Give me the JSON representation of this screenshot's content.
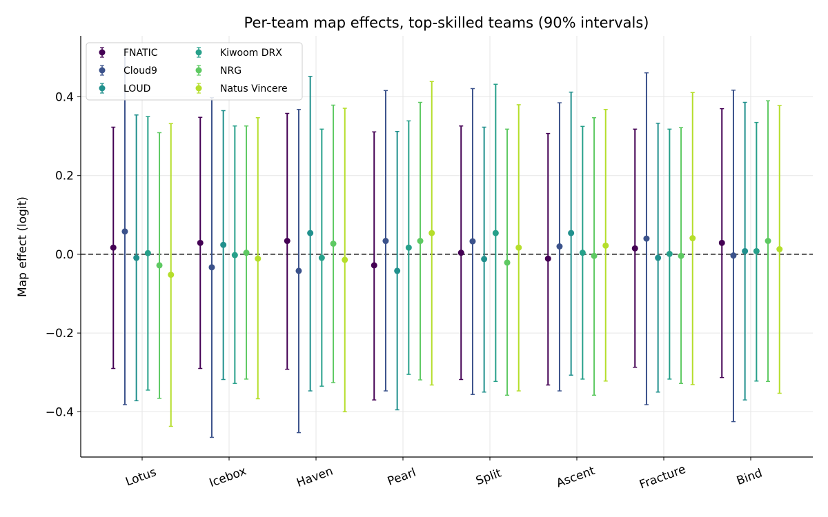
{
  "chart_data": {
    "type": "errorbar",
    "title": "Per-team map effects, top-skilled teams (90% intervals)",
    "xlabel": "",
    "ylabel": "Map effect (logit)",
    "ylim": [
      -0.515,
      0.555
    ],
    "yticks": [
      -0.4,
      -0.2,
      0.0,
      0.2,
      0.4
    ],
    "ytick_labels": [
      "−0.4",
      "−0.2",
      "0.0",
      "0.2",
      "0.4"
    ],
    "grid": true,
    "reference_line": 0.0,
    "legend_position": "top-left",
    "categories": [
      "Lotus",
      "Icebox",
      "Haven",
      "Pearl",
      "Split",
      "Ascent",
      "Fracture",
      "Bind"
    ],
    "series": [
      {
        "name": "FNATIC",
        "color": "#440154",
        "values": [
          0.017,
          0.029,
          0.034,
          -0.028,
          0.004,
          -0.011,
          0.015,
          0.029
        ],
        "lower": [
          -0.29,
          -0.29,
          -0.292,
          -0.37,
          -0.318,
          -0.332,
          -0.287,
          -0.313
        ],
        "upper": [
          0.323,
          0.348,
          0.358,
          0.311,
          0.326,
          0.307,
          0.318,
          0.37
        ]
      },
      {
        "name": "Cloud9",
        "color": "#3b528b",
        "values": [
          0.058,
          -0.033,
          -0.042,
          0.034,
          0.033,
          0.02,
          0.04,
          -0.003
        ],
        "lower": [
          -0.382,
          -0.465,
          -0.453,
          -0.347,
          -0.356,
          -0.347,
          -0.382,
          -0.425
        ],
        "upper": [
          0.52,
          0.398,
          0.368,
          0.416,
          0.421,
          0.385,
          0.461,
          0.417
        ]
      },
      {
        "name": "LOUD",
        "color": "#21908d",
        "values": [
          -0.009,
          0.024,
          0.054,
          -0.042,
          -0.012,
          0.054,
          -0.009,
          0.008
        ],
        "lower": [
          -0.372,
          -0.318,
          -0.347,
          -0.395,
          -0.35,
          -0.307,
          -0.35,
          -0.37
        ],
        "upper": [
          0.354,
          0.365,
          0.452,
          0.312,
          0.323,
          0.412,
          0.333,
          0.386
        ]
      },
      {
        "name": "Kiwoom DRX",
        "color": "#27a08a",
        "values": [
          0.003,
          -0.002,
          -0.009,
          0.017,
          0.054,
          0.004,
          0.001,
          0.008
        ],
        "lower": [
          -0.345,
          -0.328,
          -0.335,
          -0.305,
          -0.323,
          -0.317,
          -0.317,
          -0.322
        ],
        "upper": [
          0.35,
          0.326,
          0.318,
          0.339,
          0.432,
          0.325,
          0.318,
          0.335
        ]
      },
      {
        "name": "NRG",
        "color": "#5ec962",
        "values": [
          -0.028,
          0.004,
          0.027,
          0.034,
          -0.021,
          -0.004,
          -0.004,
          0.034
        ],
        "lower": [
          -0.366,
          -0.317,
          -0.326,
          -0.319,
          -0.358,
          -0.358,
          -0.328,
          -0.323
        ],
        "upper": [
          0.309,
          0.326,
          0.379,
          0.386,
          0.318,
          0.347,
          0.322,
          0.39
        ]
      },
      {
        "name": "Natus Vincere",
        "color": "#b5de2b",
        "values": [
          -0.052,
          -0.011,
          -0.014,
          0.054,
          0.017,
          0.022,
          0.041,
          0.013
        ],
        "lower": [
          -0.437,
          -0.367,
          -0.4,
          -0.332,
          -0.347,
          -0.322,
          -0.331,
          -0.353
        ],
        "upper": [
          0.332,
          0.347,
          0.371,
          0.439,
          0.38,
          0.368,
          0.411,
          0.378
        ]
      }
    ]
  }
}
